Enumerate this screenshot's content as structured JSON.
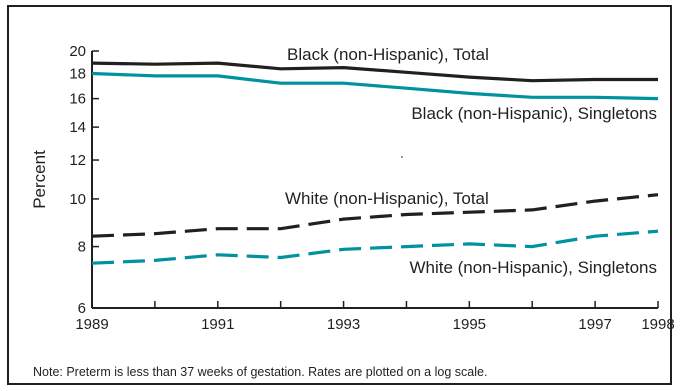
{
  "chart_data": {
    "type": "line",
    "ylabel": "Percent",
    "xlabel": "",
    "y_scale": "log",
    "ylim": [
      6,
      20
    ],
    "xlim": [
      1989,
      1998
    ],
    "x_ticks": [
      1989,
      1990,
      1991,
      1992,
      1993,
      1994,
      1995,
      1996,
      1997,
      1998
    ],
    "x_tick_labels": [
      "1989",
      "1991",
      "1993",
      "1995",
      "1997",
      "1998"
    ],
    "y_tick_labels": [
      "6",
      "8",
      "10",
      "12",
      "14",
      "16",
      "18",
      "20"
    ],
    "y_tick_values": [
      6,
      8,
      10,
      12,
      14,
      16,
      18,
      20
    ],
    "grid": false,
    "series": [
      {
        "name": "Black (non-Hispanic), Total",
        "color": "#231f20",
        "dash": "solid",
        "x": [
          1989,
          1990,
          1991,
          1992,
          1993,
          1994,
          1995,
          1996,
          1997,
          1998
        ],
        "values": [
          18.9,
          18.8,
          18.9,
          18.4,
          18.5,
          18.1,
          17.7,
          17.4,
          17.5,
          17.5
        ]
      },
      {
        "name": "Black (non-Hispanic), Singletons",
        "color": "#00929f",
        "dash": "solid",
        "x": [
          1989,
          1990,
          1991,
          1992,
          1993,
          1994,
          1995,
          1996,
          1997,
          1998
        ],
        "values": [
          18.0,
          17.8,
          17.8,
          17.2,
          17.2,
          16.8,
          16.4,
          16.1,
          16.1,
          16.0
        ]
      },
      {
        "name": "White (non-Hispanic), Total",
        "color": "#231f20",
        "dash": "dashed",
        "x": [
          1989,
          1990,
          1991,
          1992,
          1993,
          1994,
          1995,
          1996,
          1997,
          1998
        ],
        "values": [
          8.4,
          8.5,
          8.7,
          8.7,
          9.1,
          9.3,
          9.4,
          9.5,
          9.9,
          10.2
        ]
      },
      {
        "name": "White (non-Hispanic), Singletons",
        "color": "#00929f",
        "dash": "dashed",
        "x": [
          1989,
          1990,
          1991,
          1992,
          1993,
          1994,
          1995,
          1996,
          1997,
          1998
        ],
        "values": [
          7.4,
          7.5,
          7.7,
          7.6,
          7.9,
          8.0,
          8.1,
          8.0,
          8.4,
          8.6
        ]
      }
    ]
  },
  "note": "Note:  Preterm is less than 37 weeks of gestation.  Rates are plotted on a log scale."
}
